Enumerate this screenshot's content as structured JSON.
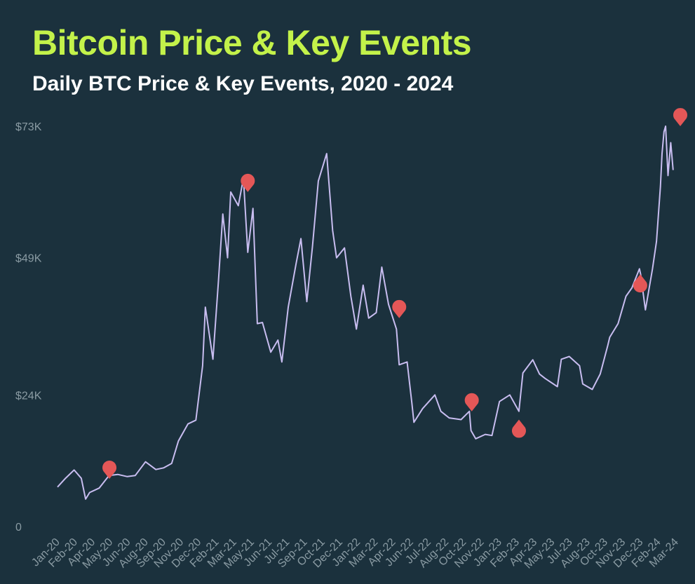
{
  "chart_data": {
    "type": "line",
    "title": "Bitcoin Price & Key Events",
    "subtitle": "Daily BTC Price & Key Events, 2020 - 2024",
    "xlabel": "",
    "ylabel": "",
    "grid": false,
    "ylim": [
      0,
      73000
    ],
    "y_ticks": [
      {
        "value": 0,
        "label": "0"
      },
      {
        "value": 24000,
        "label": "$24K"
      },
      {
        "value": 49000,
        "label": "$49K"
      },
      {
        "value": 73000,
        "label": "$73K"
      }
    ],
    "x_ticks": [
      "Jan-20",
      "Feb-20",
      "Apr-20",
      "May-20",
      "Jun-20",
      "Aug-20",
      "Sep-20",
      "Nov-20",
      "Dec-20",
      "Feb-21",
      "Mar-21",
      "May-21",
      "Jun-21",
      "Jul-21",
      "Sep-21",
      "Oct-21",
      "Dec-21",
      "Jan-22",
      "Mar-22",
      "Apr-22",
      "Jun-22",
      "Jul-22",
      "Aug-22",
      "Oct-22",
      "Nov-22",
      "Jan-23",
      "Feb-23",
      "Apr-23",
      "May-23",
      "Jul-23",
      "Aug-23",
      "Oct-23",
      "Nov-23",
      "Dec-23",
      "Feb-24",
      "Mar-24"
    ],
    "series": [
      {
        "color": "#c8bdf0",
        "x": [
          "2020-01-01",
          "2020-01-20",
          "2020-02-12",
          "2020-03-01",
          "2020-03-12",
          "2020-03-22",
          "2020-04-15",
          "2020-05-10",
          "2020-06-01",
          "2020-06-25",
          "2020-07-15",
          "2020-08-10",
          "2020-09-05",
          "2020-09-25",
          "2020-10-15",
          "2020-11-01",
          "2020-11-25",
          "2020-12-15",
          "2021-01-01",
          "2021-01-08",
          "2021-01-27",
          "2021-02-10",
          "2021-02-21",
          "2021-03-05",
          "2021-03-13",
          "2021-04-01",
          "2021-04-14",
          "2021-04-25",
          "2021-05-08",
          "2021-05-19",
          "2021-06-01",
          "2021-06-22",
          "2021-07-10",
          "2021-07-20",
          "2021-08-05",
          "2021-08-25",
          "2021-09-06",
          "2021-09-21",
          "2021-10-05",
          "2021-10-20",
          "2021-11-10",
          "2021-11-25",
          "2021-12-05",
          "2021-12-25",
          "2022-01-10",
          "2022-01-24",
          "2022-02-10",
          "2022-02-24",
          "2022-03-15",
          "2022-03-29",
          "2022-04-15",
          "2022-05-05",
          "2022-05-12",
          "2022-06-01",
          "2022-06-13",
          "2022-06-18",
          "2022-07-10",
          "2022-08-10",
          "2022-08-25",
          "2022-09-15",
          "2022-10-15",
          "2022-11-05",
          "2022-11-09",
          "2022-11-21",
          "2022-12-15",
          "2023-01-01",
          "2023-01-20",
          "2023-02-15",
          "2023-03-10",
          "2023-03-20",
          "2023-04-14",
          "2023-05-01",
          "2023-05-15",
          "2023-06-15",
          "2023-06-25",
          "2023-07-15",
          "2023-08-10",
          "2023-08-18",
          "2023-09-11",
          "2023-10-01",
          "2023-10-20",
          "2023-10-25",
          "2023-11-15",
          "2023-12-05",
          "2023-12-20",
          "2024-01-08",
          "2024-01-11",
          "2024-01-23",
          "2024-02-10",
          "2024-02-20",
          "2024-03-01",
          "2024-03-05",
          "2024-03-10",
          "2024-03-14",
          "2024-03-20",
          "2024-03-27",
          "2024-04-02"
        ],
        "values": [
          7200,
          8700,
          10300,
          8800,
          5000,
          6200,
          7000,
          9300,
          9500,
          9100,
          9300,
          11800,
          10400,
          10700,
          11500,
          15600,
          18700,
          19400,
          29300,
          40000,
          30500,
          44800,
          57000,
          49000,
          61000,
          58500,
          63500,
          50000,
          58000,
          37000,
          37200,
          31800,
          34000,
          30000,
          40000,
          48000,
          52500,
          41000,
          51000,
          63000,
          68000,
          54000,
          49000,
          50800,
          42000,
          36000,
          44000,
          38000,
          39000,
          47300,
          40500,
          36000,
          29500,
          30000,
          22500,
          19000,
          21500,
          24000,
          21000,
          19800,
          19500,
          21000,
          17500,
          16000,
          16800,
          16600,
          22800,
          24000,
          21000,
          28000,
          30400,
          27800,
          27000,
          25500,
          30500,
          31000,
          29300,
          26000,
          25000,
          27800,
          33000,
          34500,
          37000,
          42000,
          43500,
          47000,
          46000,
          39500,
          47000,
          52000,
          62000,
          68000,
          72000,
          73000,
          64000,
          70000,
          65000
        ]
      }
    ],
    "annotations": [
      {
        "kind": "event-marker",
        "date": "2020-05-11",
        "value": 8700,
        "pointer": "down",
        "color": "#e45757"
      },
      {
        "kind": "event-marker",
        "date": "2021-04-25",
        "value": 61000,
        "pointer": "down",
        "color": "#e45757"
      },
      {
        "kind": "event-marker",
        "date": "2022-05-12",
        "value": 38000,
        "pointer": "down",
        "color": "#e45757"
      },
      {
        "kind": "event-marker",
        "date": "2022-11-11",
        "value": 21000,
        "pointer": "down",
        "color": "#e45757"
      },
      {
        "kind": "event-marker",
        "date": "2023-03-10",
        "value": 19500,
        "pointer": "up",
        "color": "#e45757"
      },
      {
        "kind": "event-marker",
        "date": "2024-01-10",
        "value": 46000,
        "pointer": "up",
        "color": "#e45757"
      },
      {
        "kind": "event-marker",
        "date": "2024-04-20",
        "value": 73000,
        "pointer": "down",
        "color": "#e45757"
      }
    ]
  }
}
